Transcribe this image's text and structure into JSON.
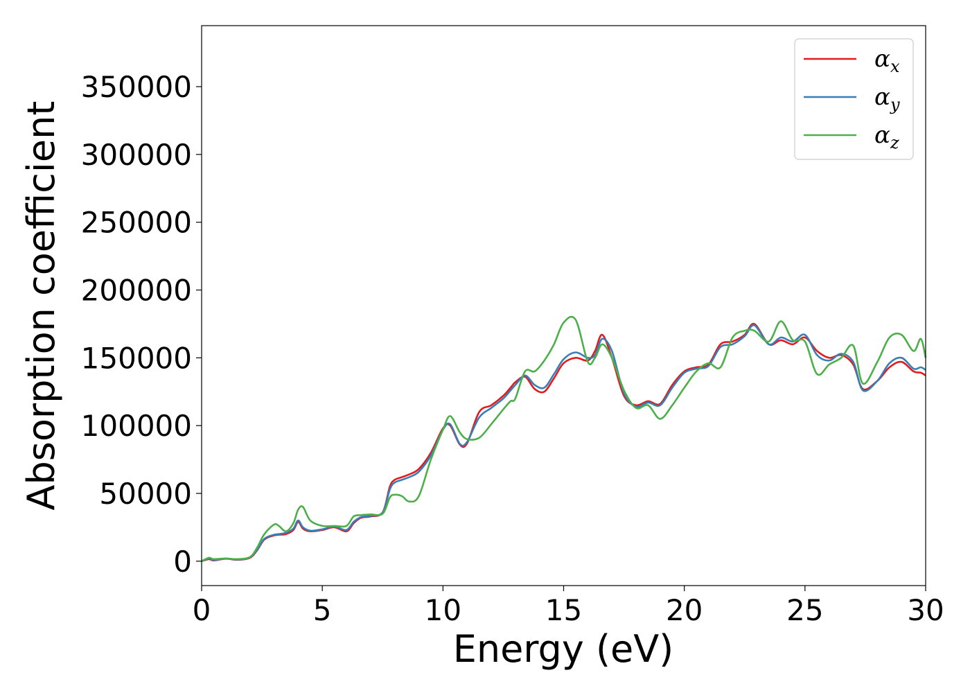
{
  "chart_data": {
    "type": "line",
    "title": "",
    "xlabel": "Energy (eV)",
    "ylabel": "Absorption coefficient",
    "xlim": [
      0,
      30
    ],
    "ylim": [
      -18000,
      395000
    ],
    "xticks": [
      0,
      5,
      10,
      15,
      20,
      25,
      30
    ],
    "xtick_labels": [
      "0",
      "5",
      "10",
      "15",
      "20",
      "25",
      "30"
    ],
    "yticks": [
      0,
      50000,
      100000,
      150000,
      200000,
      250000,
      300000,
      350000
    ],
    "ytick_labels": [
      "0",
      "50000",
      "100000",
      "150000",
      "200000",
      "250000",
      "300000",
      "350000"
    ],
    "grid": false,
    "legend_position": "top-right",
    "colors": {
      "x": "#e41a1c",
      "y": "#377eb8",
      "z": "#4daf4a"
    },
    "x": [
      0,
      0.3,
      0.5,
      1,
      1.5,
      2,
      2.3,
      2.6,
      3,
      3.2,
      3.5,
      3.8,
      4,
      4.2,
      4.5,
      5,
      5.5,
      6,
      6.3,
      6.6,
      7,
      7.5,
      7.8,
      8,
      8.3,
      8.6,
      9,
      9.5,
      10,
      10.3,
      10.7,
      11,
      11.5,
      12,
      12.5,
      12.8,
      13,
      13.4,
      13.8,
      14.2,
      14.6,
      15,
      15.5,
      16,
      16.3,
      16.6,
      17,
      17.5,
      18,
      18.5,
      19,
      19.5,
      20,
      20.5,
      21,
      21.5,
      22,
      22.5,
      22.9,
      23.5,
      24,
      24.5,
      25,
      25.5,
      26,
      26.5,
      27,
      27.4,
      28,
      28.5,
      29,
      29.5,
      29.8,
      30
    ],
    "series": [
      {
        "name": "α",
        "sub": "x",
        "values": [
          0,
          1500,
          500,
          1800,
          1000,
          2500,
          8000,
          16000,
          19000,
          19500,
          20000,
          23000,
          29000,
          24000,
          22000,
          23000,
          25000,
          22000,
          28000,
          32000,
          33000,
          36000,
          55000,
          60000,
          62000,
          64000,
          68000,
          80000,
          98000,
          100000,
          86000,
          87000,
          110000,
          115000,
          122000,
          128000,
          132000,
          136000,
          127000,
          125000,
          135000,
          146000,
          150000,
          148000,
          155000,
          167000,
          150000,
          122000,
          115000,
          118000,
          116000,
          130000,
          140000,
          143000,
          145000,
          160000,
          162000,
          167000,
          175000,
          160000,
          163000,
          160000,
          165000,
          155000,
          150000,
          152000,
          145000,
          127000,
          133000,
          143000,
          147000,
          140000,
          139000,
          137000
        ]
      },
      {
        "name": "α",
        "sub": "y",
        "values": [
          0,
          2000,
          800,
          2000,
          1200,
          2800,
          8500,
          16500,
          19500,
          20000,
          21000,
          24000,
          30000,
          25000,
          22500,
          23500,
          25500,
          23000,
          29000,
          32500,
          33500,
          36000,
          53000,
          58000,
          60000,
          62000,
          66000,
          78000,
          97000,
          101000,
          86500,
          88000,
          106000,
          113000,
          120000,
          126000,
          130000,
          137000,
          130000,
          128000,
          138000,
          149000,
          154000,
          150000,
          152000,
          164000,
          155000,
          124000,
          114000,
          117000,
          115000,
          128000,
          139000,
          142000,
          144000,
          158000,
          160000,
          166000,
          174000,
          160000,
          165000,
          162000,
          167000,
          152000,
          148000,
          153000,
          147000,
          126000,
          133000,
          146000,
          150000,
          142000,
          143000,
          141000
        ]
      },
      {
        "name": "α",
        "sub": "z",
        "values": [
          0,
          2500,
          1500,
          2000,
          1500,
          3000,
          10000,
          20000,
          27000,
          26000,
          22000,
          28000,
          38000,
          40000,
          30000,
          26000,
          26000,
          26000,
          33000,
          34000,
          34500,
          35000,
          47000,
          49000,
          48000,
          44000,
          48000,
          75000,
          97000,
          107000,
          95000,
          90000,
          91000,
          101000,
          112000,
          118000,
          120000,
          140000,
          140000,
          148000,
          160000,
          176000,
          178000,
          147000,
          150000,
          160000,
          150000,
          126000,
          113000,
          115000,
          105000,
          115000,
          128000,
          140000,
          146000,
          143000,
          165000,
          170000,
          170000,
          162000,
          177000,
          163000,
          162000,
          138000,
          145000,
          150000,
          159000,
          131000,
          147000,
          165000,
          167000,
          155000,
          164000,
          150000
        ]
      }
    ]
  }
}
